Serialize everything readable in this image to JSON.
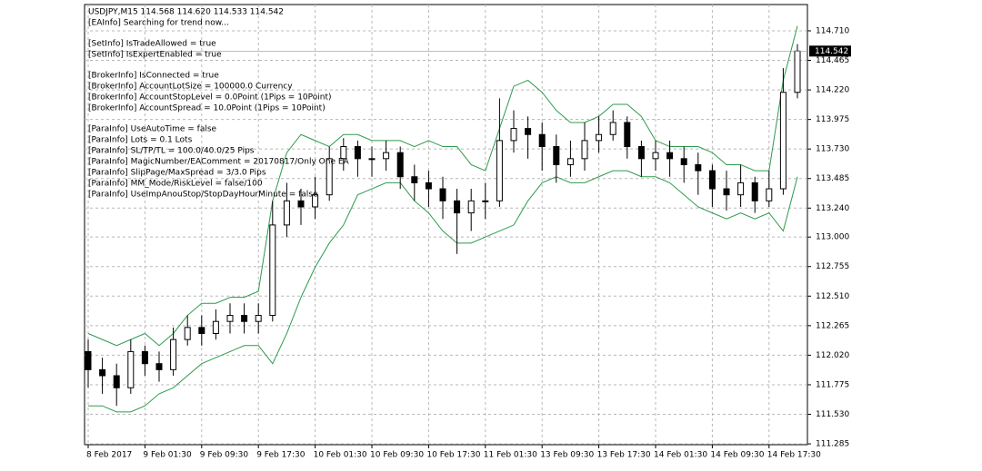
{
  "chart_data": {
    "type": "candlestick",
    "title": "USDJPY,M15 114.568 114.620 114.533 114.542",
    "info_groups": [
      [
        "[EAInfo] Searching for trend now..."
      ],
      [
        "[SetInfo] IsTradeAllowed = true",
        "[SetInfo] IsExpertEnabled = true"
      ],
      [
        "[BrokerInfo] IsConnected = true",
        "[BrokerInfo] AccountLotSize = 100000.0 Currency",
        "[BrokerInfo] AccountStopLevel = 0.0Point (1Pips = 10Point)",
        "[BrokerInfo] AccountSpread = 10.0Point (1Pips = 10Point)"
      ],
      [
        "[ParaInfo] UseAutoTime = false",
        "[ParaInfo] Lots = 0.1 Lots",
        "[ParaInfo] SL/TP/TL = 100.0/40.0/25 Pips",
        "[ParaInfo] MagicNumber/EAComment = 20170817/Only One EA",
        "[ParaInfo] SlipPage/MaxSpread = 3/3.0 Pips",
        "[ParaInfo] MM_Mode/RiskLevel = false/100",
        "[ParaInfo] UseImpAnouStop/StopDayHourMinute = false"
      ]
    ],
    "categories": [
      "8 Feb 2017",
      null,
      null,
      null,
      "9 Feb 01:30",
      null,
      null,
      null,
      "9 Feb 09:30",
      null,
      null,
      null,
      "9 Feb 17:30",
      null,
      null,
      null,
      "10 Feb 01:30",
      null,
      null,
      null,
      "10 Feb 09:30",
      null,
      null,
      null,
      "10 Feb 17:30",
      null,
      null,
      null,
      "11 Feb 01:30",
      null,
      null,
      null,
      "13 Feb 09:30",
      null,
      null,
      null,
      "13 Feb 17:30",
      null,
      null,
      null,
      "14 Feb 01:30",
      null,
      null,
      null,
      "14 Feb 09:30",
      null,
      null,
      null,
      "14 Feb 17:30",
      null,
      null
    ],
    "open": [
      112.05,
      111.9,
      111.85,
      111.75,
      112.05,
      111.95,
      111.9,
      112.15,
      112.25,
      112.2,
      112.3,
      112.35,
      112.3,
      112.35,
      113.1,
      113.3,
      113.25,
      113.35,
      113.65,
      113.75,
      113.65,
      113.65,
      113.7,
      113.5,
      113.45,
      113.4,
      113.3,
      113.2,
      113.3,
      113.3,
      113.8,
      113.9,
      113.85,
      113.75,
      113.6,
      113.65,
      113.8,
      113.85,
      113.95,
      113.75,
      113.65,
      113.7,
      113.65,
      113.6,
      113.55,
      113.4,
      113.35,
      113.45,
      113.3,
      113.4,
      114.2
    ],
    "high": [
      112.15,
      112.0,
      111.95,
      112.15,
      112.1,
      112.05,
      112.25,
      112.35,
      112.35,
      112.4,
      112.45,
      112.45,
      112.45,
      113.3,
      113.45,
      113.4,
      113.5,
      113.75,
      113.82,
      113.8,
      113.75,
      113.8,
      113.75,
      113.6,
      113.55,
      113.5,
      113.4,
      113.4,
      113.45,
      114.15,
      114.05,
      114.0,
      113.95,
      113.85,
      113.8,
      113.95,
      114.0,
      114.05,
      114.0,
      113.8,
      113.8,
      113.8,
      113.75,
      113.7,
      113.6,
      113.55,
      113.6,
      113.5,
      113.55,
      114.4,
      114.6
    ],
    "low": [
      111.75,
      111.7,
      111.6,
      111.7,
      111.85,
      111.8,
      111.85,
      112.1,
      112.1,
      112.15,
      112.2,
      112.2,
      112.2,
      112.3,
      113.0,
      113.1,
      113.15,
      113.3,
      113.55,
      113.5,
      113.5,
      113.55,
      113.4,
      113.3,
      113.25,
      113.15,
      112.86,
      113.05,
      113.15,
      113.25,
      113.7,
      113.65,
      113.55,
      113.45,
      113.5,
      113.55,
      113.7,
      113.8,
      113.65,
      113.5,
      113.55,
      113.5,
      113.45,
      113.35,
      113.25,
      113.22,
      113.25,
      113.2,
      113.25,
      113.35,
      114.15
    ],
    "close": [
      111.9,
      111.85,
      111.75,
      112.05,
      111.95,
      111.9,
      112.15,
      112.25,
      112.2,
      112.3,
      112.35,
      112.3,
      112.35,
      113.1,
      113.3,
      113.25,
      113.35,
      113.65,
      113.75,
      113.65,
      113.65,
      113.7,
      113.5,
      113.45,
      113.4,
      113.3,
      113.2,
      113.3,
      113.3,
      113.8,
      113.9,
      113.85,
      113.75,
      113.6,
      113.65,
      113.8,
      113.85,
      113.95,
      113.75,
      113.65,
      113.7,
      113.65,
      113.6,
      113.55,
      113.4,
      113.35,
      113.45,
      113.3,
      113.4,
      114.2,
      114.542
    ],
    "color": "#000000",
    "bands": [
      {
        "color": "#2e9a4e",
        "values": [
          112.2,
          112.15,
          112.1,
          112.15,
          112.2,
          112.1,
          112.2,
          112.35,
          112.45,
          112.45,
          112.5,
          112.5,
          112.55,
          113.3,
          113.7,
          113.85,
          113.8,
          113.75,
          113.85,
          113.85,
          113.8,
          113.8,
          113.8,
          113.75,
          113.8,
          113.75,
          113.75,
          113.6,
          113.55,
          113.9,
          114.25,
          114.3,
          114.2,
          114.05,
          113.95,
          113.95,
          114.0,
          114.1,
          114.1,
          114.0,
          113.8,
          113.75,
          113.75,
          113.75,
          113.7,
          113.6,
          113.6,
          113.55,
          113.55,
          114.3,
          114.75
        ]
      },
      {
        "color": "#2e9a4e",
        "values": [
          111.6,
          111.6,
          111.55,
          111.55,
          111.6,
          111.7,
          111.75,
          111.85,
          111.95,
          112.0,
          112.05,
          112.1,
          112.1,
          111.95,
          112.2,
          112.5,
          112.75,
          112.95,
          113.1,
          113.35,
          113.4,
          113.45,
          113.45,
          113.3,
          113.2,
          113.05,
          112.95,
          112.95,
          113.0,
          113.05,
          113.1,
          113.3,
          113.45,
          113.5,
          113.45,
          113.45,
          113.5,
          113.55,
          113.55,
          113.5,
          113.5,
          113.45,
          113.35,
          113.25,
          113.2,
          113.15,
          113.2,
          113.15,
          113.2,
          113.05,
          113.5
        ]
      }
    ],
    "last_price": 114.542,
    "ylim": [
      111.278,
      114.928
    ],
    "yticks": [
      {
        "value": 111.285,
        "label": "111.285"
      },
      {
        "value": 111.53,
        "label": "111.530"
      },
      {
        "value": 111.775,
        "label": "111.775"
      },
      {
        "value": 112.02,
        "label": "112.020"
      },
      {
        "value": 112.265,
        "label": "112.265"
      },
      {
        "value": 112.51,
        "label": "112.510"
      },
      {
        "value": 112.755,
        "label": "112.755"
      },
      {
        "value": 113,
        "label": "113.000"
      },
      {
        "value": 113.24,
        "label": "113.240"
      },
      {
        "value": 113.485,
        "label": "113.485"
      },
      {
        "value": 113.73,
        "label": "113.730"
      },
      {
        "value": 113.975,
        "label": "113.975"
      },
      {
        "value": 114.22,
        "label": "114.220"
      },
      {
        "value": 114.465,
        "label": "114.465"
      },
      {
        "value": 114.71,
        "label": "114.710"
      }
    ],
    "grid": true
  }
}
